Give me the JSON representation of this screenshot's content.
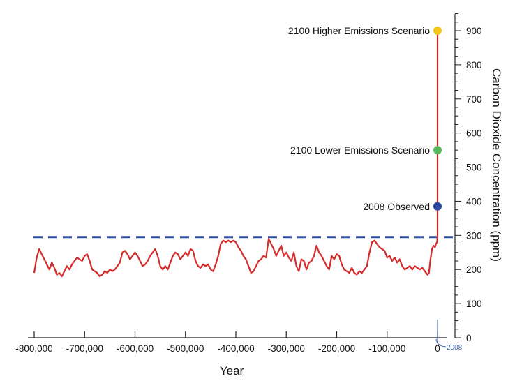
{
  "chart_data": {
    "type": "line",
    "title": "",
    "xlabel": "Year",
    "ylabel": "Carbon Dioxide Concentration (ppm)",
    "xlim": [
      -800000,
      0
    ],
    "ylim": [
      0,
      900
    ],
    "x_ticks": [
      -800000,
      -700000,
      -600000,
      -500000,
      -400000,
      -300000,
      -200000,
      -100000,
      0
    ],
    "x_tick_labels": [
      "-800,000",
      "-700,000",
      "-600,000",
      "-500,000",
      "-400,000",
      "-300,000",
      "-200,000",
      "-100,000",
      "0"
    ],
    "y_ticks": [
      0,
      100,
      200,
      300,
      400,
      500,
      600,
      700,
      800,
      900
    ],
    "y_tick_labels": [
      "0",
      "100",
      "200",
      "300",
      "400",
      "500",
      "600",
      "700",
      "800",
      "900"
    ],
    "grid": false,
    "reference_line": {
      "y": 295,
      "style": "dashed",
      "color": "#2f4fa3"
    },
    "series": [
      {
        "color": "#d42a2a",
        "points": [
          [
            -800000,
            190
          ],
          [
            -795000,
            235
          ],
          [
            -790000,
            260
          ],
          [
            -785000,
            245
          ],
          [
            -780000,
            230
          ],
          [
            -775000,
            215
          ],
          [
            -770000,
            200
          ],
          [
            -765000,
            220
          ],
          [
            -760000,
            205
          ],
          [
            -755000,
            185
          ],
          [
            -750000,
            190
          ],
          [
            -745000,
            180
          ],
          [
            -740000,
            195
          ],
          [
            -735000,
            210
          ],
          [
            -730000,
            200
          ],
          [
            -725000,
            215
          ],
          [
            -720000,
            225
          ],
          [
            -715000,
            235
          ],
          [
            -710000,
            230
          ],
          [
            -705000,
            225
          ],
          [
            -700000,
            240
          ],
          [
            -695000,
            245
          ],
          [
            -690000,
            225
          ],
          [
            -685000,
            200
          ],
          [
            -680000,
            195
          ],
          [
            -675000,
            190
          ],
          [
            -670000,
            180
          ],
          [
            -665000,
            185
          ],
          [
            -660000,
            195
          ],
          [
            -655000,
            190
          ],
          [
            -650000,
            200
          ],
          [
            -645000,
            195
          ],
          [
            -640000,
            200
          ],
          [
            -635000,
            210
          ],
          [
            -630000,
            220
          ],
          [
            -625000,
            250
          ],
          [
            -620000,
            255
          ],
          [
            -615000,
            245
          ],
          [
            -610000,
            230
          ],
          [
            -605000,
            240
          ],
          [
            -600000,
            250
          ],
          [
            -595000,
            240
          ],
          [
            -590000,
            225
          ],
          [
            -585000,
            210
          ],
          [
            -580000,
            215
          ],
          [
            -575000,
            225
          ],
          [
            -570000,
            240
          ],
          [
            -565000,
            250
          ],
          [
            -560000,
            260
          ],
          [
            -555000,
            240
          ],
          [
            -550000,
            210
          ],
          [
            -545000,
            200
          ],
          [
            -540000,
            210
          ],
          [
            -535000,
            200
          ],
          [
            -530000,
            220
          ],
          [
            -525000,
            240
          ],
          [
            -520000,
            250
          ],
          [
            -515000,
            245
          ],
          [
            -510000,
            230
          ],
          [
            -505000,
            240
          ],
          [
            -500000,
            250
          ],
          [
            -495000,
            240
          ],
          [
            -490000,
            260
          ],
          [
            -485000,
            255
          ],
          [
            -480000,
            225
          ],
          [
            -475000,
            210
          ],
          [
            -470000,
            205
          ],
          [
            -465000,
            215
          ],
          [
            -460000,
            210
          ],
          [
            -455000,
            215
          ],
          [
            -450000,
            200
          ],
          [
            -445000,
            195
          ],
          [
            -440000,
            215
          ],
          [
            -435000,
            240
          ],
          [
            -430000,
            275
          ],
          [
            -425000,
            285
          ],
          [
            -420000,
            280
          ],
          [
            -415000,
            285
          ],
          [
            -410000,
            280
          ],
          [
            -405000,
            285
          ],
          [
            -400000,
            280
          ],
          [
            -395000,
            265
          ],
          [
            -390000,
            255
          ],
          [
            -385000,
            240
          ],
          [
            -380000,
            230
          ],
          [
            -375000,
            210
          ],
          [
            -370000,
            190
          ],
          [
            -365000,
            195
          ],
          [
            -360000,
            210
          ],
          [
            -355000,
            225
          ],
          [
            -350000,
            230
          ],
          [
            -345000,
            240
          ],
          [
            -340000,
            235
          ],
          [
            -335000,
            290
          ],
          [
            -330000,
            275
          ],
          [
            -325000,
            260
          ],
          [
            -320000,
            240
          ],
          [
            -315000,
            255
          ],
          [
            -310000,
            270
          ],
          [
            -305000,
            240
          ],
          [
            -300000,
            250
          ],
          [
            -295000,
            235
          ],
          [
            -290000,
            225
          ],
          [
            -285000,
            250
          ],
          [
            -280000,
            210
          ],
          [
            -275000,
            195
          ],
          [
            -270000,
            230
          ],
          [
            -265000,
            225
          ],
          [
            -260000,
            200
          ],
          [
            -255000,
            220
          ],
          [
            -250000,
            225
          ],
          [
            -245000,
            240
          ],
          [
            -240000,
            270
          ],
          [
            -235000,
            250
          ],
          [
            -230000,
            240
          ],
          [
            -225000,
            225
          ],
          [
            -220000,
            210
          ],
          [
            -215000,
            200
          ],
          [
            -210000,
            240
          ],
          [
            -205000,
            230
          ],
          [
            -200000,
            245
          ],
          [
            -195000,
            240
          ],
          [
            -190000,
            215
          ],
          [
            -185000,
            200
          ],
          [
            -180000,
            195
          ],
          [
            -175000,
            190
          ],
          [
            -170000,
            205
          ],
          [
            -165000,
            190
          ],
          [
            -160000,
            185
          ],
          [
            -155000,
            195
          ],
          [
            -150000,
            190
          ],
          [
            -145000,
            200
          ],
          [
            -140000,
            210
          ],
          [
            -135000,
            250
          ],
          [
            -130000,
            280
          ],
          [
            -125000,
            285
          ],
          [
            -120000,
            275
          ],
          [
            -115000,
            265
          ],
          [
            -110000,
            260
          ],
          [
            -105000,
            255
          ],
          [
            -100000,
            235
          ],
          [
            -95000,
            240
          ],
          [
            -90000,
            225
          ],
          [
            -85000,
            235
          ],
          [
            -80000,
            220
          ],
          [
            -75000,
            230
          ],
          [
            -70000,
            210
          ],
          [
            -65000,
            200
          ],
          [
            -60000,
            205
          ],
          [
            -55000,
            210
          ],
          [
            -50000,
            200
          ],
          [
            -45000,
            210
          ],
          [
            -40000,
            205
          ],
          [
            -35000,
            200
          ],
          [
            -30000,
            205
          ],
          [
            -25000,
            195
          ],
          [
            -20000,
            185
          ],
          [
            -17000,
            190
          ],
          [
            -14000,
            230
          ],
          [
            -11000,
            260
          ],
          [
            -8000,
            270
          ],
          [
            -5000,
            265
          ],
          [
            -3000,
            275
          ],
          [
            -1000,
            280
          ],
          [
            0,
            295
          ],
          [
            0,
            900
          ]
        ]
      }
    ],
    "annotations": [
      {
        "label": "2100 Higher Emissions Scenario",
        "x": 0,
        "y": 900,
        "color": "#f5c518"
      },
      {
        "label": "2100 Lower Emissions Scenario",
        "x": 0,
        "y": 550,
        "color": "#5cb85c"
      },
      {
        "label": "2008 Observed",
        "x": 0,
        "y": 385,
        "color": "#2b4a9e"
      }
    ],
    "year_marker": {
      "label": "2008",
      "x": 0
    }
  }
}
